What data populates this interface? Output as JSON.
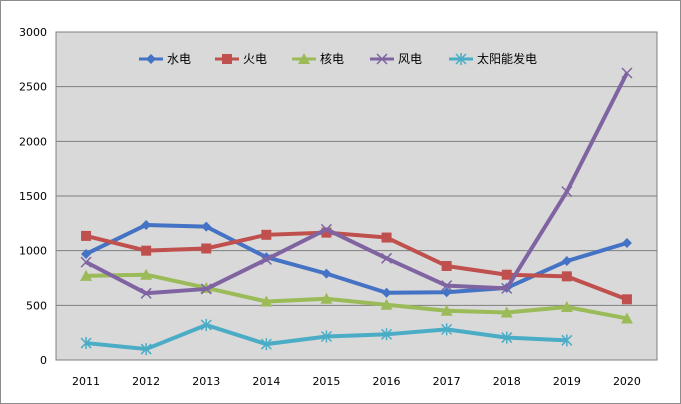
{
  "chart_data": {
    "type": "line",
    "title": "",
    "xlabel": "",
    "ylabel": "",
    "categories": [
      "2011",
      "2012",
      "2013",
      "2014",
      "2015",
      "2016",
      "2017",
      "2018",
      "2019",
      "2020"
    ],
    "ylim": [
      0,
      3000
    ],
    "yticks": [
      "0",
      "500",
      "1000",
      "1500",
      "2000",
      "2500",
      "3000"
    ],
    "grid": "horizontal",
    "legend_position": "top",
    "plot_background": "#d9d9d9",
    "series": [
      {
        "name": "水电",
        "color": "#4472c4",
        "marker": "diamond",
        "values": [
          970,
          1235,
          1220,
          940,
          790,
          615,
          620,
          660,
          905,
          1070
        ]
      },
      {
        "name": "火电",
        "color": "#c0504d",
        "marker": "square",
        "values": [
          1135,
          1000,
          1020,
          1145,
          1165,
          1120,
          860,
          780,
          765,
          555
        ]
      },
      {
        "name": "核电",
        "color": "#9bbb59",
        "marker": "triangle",
        "values": [
          770,
          780,
          660,
          535,
          560,
          505,
          450,
          435,
          485,
          380
        ]
      },
      {
        "name": "风电",
        "color": "#8064a2",
        "marker": "x",
        "values": [
          895,
          610,
          650,
          920,
          1195,
          930,
          680,
          655,
          1540,
          2625
        ]
      },
      {
        "name": "太阳能发电",
        "color": "#4bacc6",
        "marker": "star",
        "values": [
          155,
          100,
          320,
          145,
          215,
          235,
          280,
          205,
          180,
          null
        ]
      }
    ]
  }
}
